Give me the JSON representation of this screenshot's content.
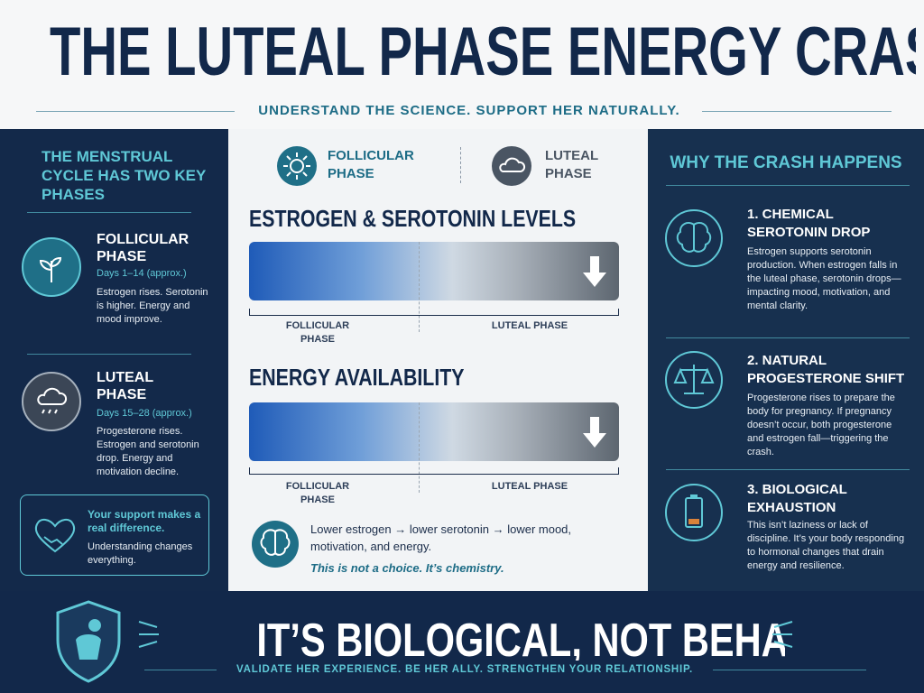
{
  "header": {
    "title": "THE LUTEAL PHASE ENERGY CRASH",
    "subtitle": "UNDERSTAND THE SCIENCE. SUPPORT HER NATURALLY."
  },
  "left": {
    "heading": "THE MENSTRUAL CYCLE HAS TWO KEY PHASES",
    "phases": [
      {
        "title": "FOLLICULAR PHASE",
        "days": "Days 1–14 (approx.)",
        "text": "Estrogen rises. Serotonin is higher. Energy and mood improve."
      },
      {
        "title": "LUTEAL PHASE",
        "days": "Days 15–28 (approx.)",
        "text": "Progesterone rises. Estrogen and serotonin drop. Energy and motivation decline."
      }
    ],
    "support": {
      "title": "Your support makes a real difference.",
      "text": "Understanding changes everything."
    }
  },
  "center": {
    "legend": [
      "FOLLICULAR PHASE",
      "LUTEAL PHASE"
    ],
    "charts": [
      {
        "title": "ESTROGEN & SEROTONIN LEVELS",
        "labels": [
          "FOLLICULAR PHASE",
          "LUTEAL PHASE"
        ]
      },
      {
        "title": "ENERGY AVAILABILITY",
        "labels": [
          "FOLLICULAR PHASE",
          "LUTEAL PHASE"
        ]
      }
    ],
    "note": {
      "text": "Lower estrogen → lower serotonin → lower mood, motivation, and energy.",
      "emphasis": "This is not a choice. It’s chemistry."
    }
  },
  "right": {
    "heading": "WHY THE CRASH HAPPENS",
    "items": [
      {
        "title": "1. CHEMICAL SEROTONIN DROP",
        "text": "Estrogen supports serotonin production. When estrogen falls in the luteal phase, serotonin drops—impacting mood, motivation, and mental clarity."
      },
      {
        "title": "2. NATURAL PROGESTERONE SHIFT",
        "text": "Progesterone rises to prepare the body for pregnancy. If pregnancy doesn’t occur, both progesterone and estrogen fall—triggering the crash."
      },
      {
        "title": "3. BIOLOGICAL EXHAUSTION",
        "text": "This isn’t laziness or lack of discipline. It’s your body responding to hormonal changes that drain energy and resilience."
      }
    ]
  },
  "footer": {
    "title": "IT’S BIOLOGICAL, NOT BEHAVIORAL.",
    "subtitle": "VALIDATE HER EXPERIENCE. BE HER ALLY. STRENGTHEN YOUR RELATIONSHIP."
  }
}
